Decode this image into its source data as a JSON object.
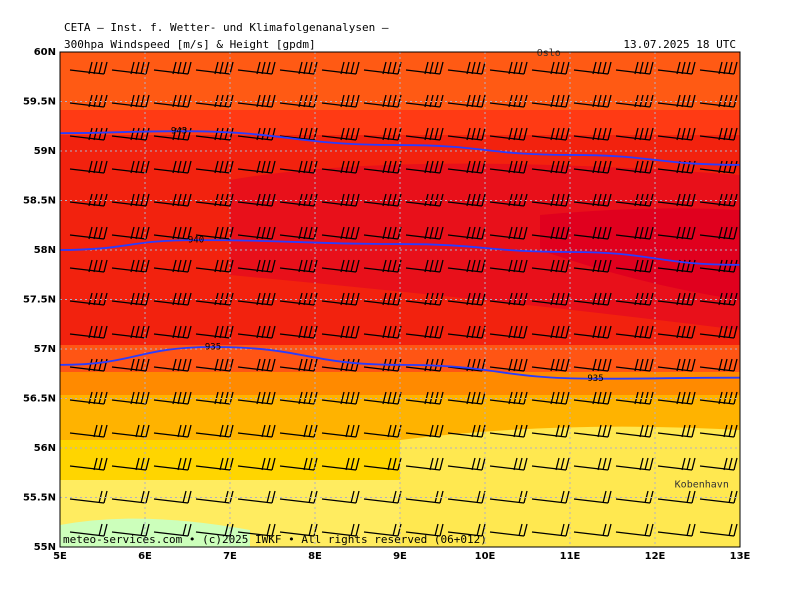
{
  "header": {
    "institute": "CETA — Inst. f. Wetter- und Klimafolgenanalysen —",
    "title": "300hpa Windspeed [m/s] & Height [gpdm]",
    "valid_time": "13.07.2025 18 UTC"
  },
  "map": {
    "xlim": [
      5,
      13
    ],
    "ylim": [
      55,
      60
    ],
    "xticks": [
      {
        "value": 5,
        "label": "5E"
      },
      {
        "value": 6,
        "label": "6E"
      },
      {
        "value": 7,
        "label": "7E"
      },
      {
        "value": 8,
        "label": "8E"
      },
      {
        "value": 9,
        "label": "9E"
      },
      {
        "value": 10,
        "label": "10E"
      },
      {
        "value": 11,
        "label": "11E"
      },
      {
        "value": 12,
        "label": "12E"
      },
      {
        "value": 13,
        "label": "13E"
      }
    ],
    "yticks": [
      {
        "value": 55,
        "label": "55N"
      },
      {
        "value": 55.5,
        "label": "55.5N"
      },
      {
        "value": 56,
        "label": "56N"
      },
      {
        "value": 56.5,
        "label": "56.5N"
      },
      {
        "value": 57,
        "label": "57N"
      },
      {
        "value": 57.5,
        "label": "57.5N"
      },
      {
        "value": 58,
        "label": "58N"
      },
      {
        "value": 58.5,
        "label": "58.5N"
      },
      {
        "value": 59,
        "label": "59N"
      },
      {
        "value": 59.5,
        "label": "59.5N"
      },
      {
        "value": 60,
        "label": "60N"
      }
    ],
    "contours": [
      {
        "label": "945",
        "lon": [
          5,
          6.4,
          9,
          11,
          13
        ],
        "lat": [
          59.18,
          59.2,
          59.06,
          58.96,
          58.86
        ]
      },
      {
        "label": "940",
        "lon": [
          5,
          6.6,
          9,
          11,
          13
        ],
        "lat": [
          58.0,
          58.1,
          58.06,
          57.98,
          57.85
        ]
      },
      {
        "label": "935",
        "lon": [
          5,
          6.8,
          9,
          11.3,
          13
        ],
        "lat": [
          56.84,
          57.02,
          56.84,
          56.7,
          56.71
        ]
      }
    ],
    "places": [
      {
        "name": "Oslo",
        "lon": 10.75,
        "lat": 59.99
      },
      {
        "name": "Kobenhavn",
        "lon": 12.55,
        "lat": 55.63
      }
    ]
  },
  "footer": "meteo-services.com • (c)2025 IWKF • All rights reserved (06+012)"
}
